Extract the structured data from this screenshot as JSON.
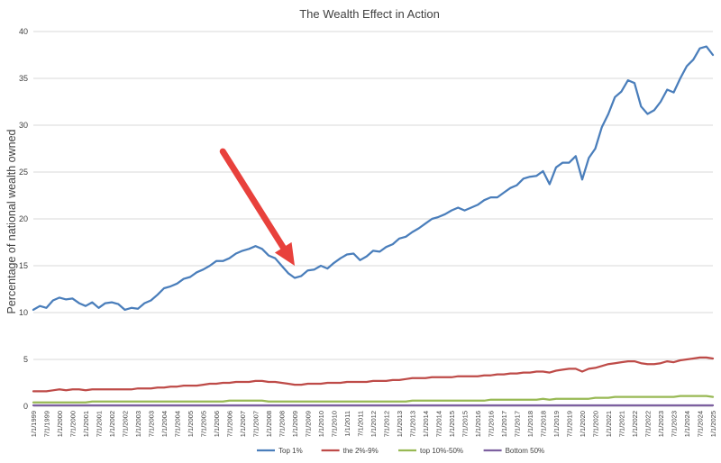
{
  "chart_data": {
    "type": "line",
    "title": "The Wealth Effect in Action",
    "xlabel": "",
    "ylabel": "Percentage of national wealth owned",
    "ylim": [
      0,
      40
    ],
    "yticks": [
      0,
      5,
      10,
      15,
      20,
      25,
      30,
      35,
      40
    ],
    "grid": "horizontal",
    "legend": "bottom",
    "x": [
      "1/1/1999",
      "4/1/1999",
      "7/1/1999",
      "10/1/1999",
      "1/1/2000",
      "4/1/2000",
      "7/1/2000",
      "10/1/2000",
      "1/1/2001",
      "4/1/2001",
      "7/1/2001",
      "10/1/2001",
      "1/1/2002",
      "4/1/2002",
      "7/1/2002",
      "10/1/2002",
      "1/1/2003",
      "4/1/2003",
      "7/1/2003",
      "10/1/2003",
      "1/1/2004",
      "4/1/2004",
      "7/1/2004",
      "10/1/2004",
      "1/1/2005",
      "4/1/2005",
      "7/1/2005",
      "10/1/2005",
      "1/1/2006",
      "4/1/2006",
      "7/1/2006",
      "10/1/2006",
      "1/1/2007",
      "4/1/2007",
      "7/1/2007",
      "10/1/2007",
      "1/1/2008",
      "4/1/2008",
      "7/1/2008",
      "10/1/2008",
      "1/1/2009",
      "4/1/2009",
      "7/1/2009",
      "10/1/2009",
      "1/1/2010",
      "4/1/2010",
      "7/1/2010",
      "10/1/2010",
      "1/1/2011",
      "4/1/2011",
      "7/1/2011",
      "10/1/2011",
      "1/1/2012",
      "4/1/2012",
      "7/1/2012",
      "10/1/2012",
      "1/1/2013",
      "4/1/2013",
      "7/1/2013",
      "10/1/2013",
      "1/1/2014",
      "4/1/2014",
      "7/1/2014",
      "10/1/2014",
      "1/1/2015",
      "4/1/2015",
      "7/1/2015",
      "10/1/2015",
      "1/1/2016",
      "4/1/2016",
      "7/1/2016",
      "10/1/2016",
      "1/1/2017",
      "4/1/2017",
      "7/1/2017",
      "10/1/2017",
      "1/1/2018",
      "4/1/2018",
      "7/1/2018",
      "10/1/2018",
      "1/1/2019",
      "4/1/2019",
      "7/1/2019",
      "10/1/2019",
      "1/1/2020",
      "4/1/2020",
      "7/1/2020",
      "10/1/2020",
      "1/1/2021",
      "4/1/2021",
      "7/1/2021",
      "10/1/2021",
      "1/1/2022",
      "4/1/2022",
      "7/1/2022",
      "10/1/2022",
      "1/1/2023",
      "4/1/2023",
      "7/1/2023",
      "10/1/2023",
      "1/1/2024",
      "4/1/2024",
      "7/1/2024",
      "10/1/2024",
      "1/1/2025"
    ],
    "xtick_labels": [
      "1/1/1999",
      "7/1/1999",
      "1/1/2000",
      "7/1/2000",
      "1/1/2001",
      "7/1/2001",
      "1/1/2002",
      "7/1/2002",
      "1/1/2003",
      "7/1/2003",
      "1/1/2004",
      "7/1/2004",
      "1/1/2005",
      "7/1/2005",
      "1/1/2006",
      "7/1/2006",
      "1/1/2007",
      "7/1/2007",
      "1/1/2008",
      "7/1/2008",
      "1/1/2009",
      "7/1/2009",
      "1/1/2010",
      "7/1/2010",
      "1/1/2011",
      "7/1/2011",
      "1/1/2012",
      "7/1/2012",
      "1/1/2013",
      "7/1/2013",
      "1/1/2014",
      "7/1/2014",
      "1/1/2015",
      "7/1/2015",
      "1/1/2016",
      "7/1/2016",
      "1/1/2017",
      "7/1/2017",
      "1/1/2018",
      "7/1/2018",
      "1/1/2019",
      "7/1/2019",
      "1/1/2020",
      "7/1/2020",
      "1/1/2021",
      "7/1/2021",
      "1/1/2022",
      "7/1/2022",
      "1/1/2023",
      "7/1/2023",
      "1/1/2024",
      "7/1/2024",
      "1/1/2025"
    ],
    "series": [
      {
        "name": "Top 1%",
        "color": "#4a7ebb",
        "values": [
          10.3,
          10.7,
          10.5,
          11.3,
          11.6,
          11.4,
          11.5,
          11.0,
          10.7,
          11.1,
          10.5,
          11.0,
          11.1,
          10.9,
          10.3,
          10.5,
          10.4,
          11.0,
          11.3,
          11.9,
          12.6,
          12.8,
          13.1,
          13.6,
          13.8,
          14.3,
          14.6,
          15.0,
          15.5,
          15.5,
          15.8,
          16.3,
          16.6,
          16.8,
          17.1,
          16.8,
          16.1,
          15.8,
          15.0,
          14.2,
          13.7,
          13.9,
          14.5,
          14.6,
          15.0,
          14.7,
          15.3,
          15.8,
          16.2,
          16.3,
          15.6,
          16.0,
          16.6,
          16.5,
          17.0,
          17.3,
          17.9,
          18.1,
          18.6,
          19.0,
          19.5,
          20.0,
          20.2,
          20.5,
          20.9,
          21.2,
          20.9,
          21.2,
          21.5,
          22.0,
          22.3,
          22.3,
          22.8,
          23.3,
          23.6,
          24.3,
          24.5,
          24.6,
          25.1,
          23.7,
          25.5,
          26.0,
          26.0,
          26.7,
          24.2,
          26.5,
          27.5,
          29.8,
          31.2,
          33.0,
          33.6,
          34.8,
          34.5,
          32.0,
          31.2,
          31.6,
          32.5,
          33.8,
          33.5,
          35.0,
          36.3,
          37.0,
          38.2,
          38.4,
          37.5
        ]
      },
      {
        "name": "the 2%-9%",
        "color": "#be4b48",
        "values": [
          1.6,
          1.6,
          1.6,
          1.7,
          1.8,
          1.7,
          1.8,
          1.8,
          1.7,
          1.8,
          1.8,
          1.8,
          1.8,
          1.8,
          1.8,
          1.8,
          1.9,
          1.9,
          1.9,
          2.0,
          2.0,
          2.1,
          2.1,
          2.2,
          2.2,
          2.2,
          2.3,
          2.4,
          2.4,
          2.5,
          2.5,
          2.6,
          2.6,
          2.6,
          2.7,
          2.7,
          2.6,
          2.6,
          2.5,
          2.4,
          2.3,
          2.3,
          2.4,
          2.4,
          2.4,
          2.5,
          2.5,
          2.5,
          2.6,
          2.6,
          2.6,
          2.6,
          2.7,
          2.7,
          2.7,
          2.8,
          2.8,
          2.9,
          3.0,
          3.0,
          3.0,
          3.1,
          3.1,
          3.1,
          3.1,
          3.2,
          3.2,
          3.2,
          3.2,
          3.3,
          3.3,
          3.4,
          3.4,
          3.5,
          3.5,
          3.6,
          3.6,
          3.7,
          3.7,
          3.6,
          3.8,
          3.9,
          4.0,
          4.0,
          3.7,
          4.0,
          4.1,
          4.3,
          4.5,
          4.6,
          4.7,
          4.8,
          4.8,
          4.6,
          4.5,
          4.5,
          4.6,
          4.8,
          4.7,
          4.9,
          5.0,
          5.1,
          5.2,
          5.2,
          5.1
        ]
      },
      {
        "name": "top 10%-50%",
        "color": "#98b954",
        "values": [
          0.4,
          0.4,
          0.4,
          0.4,
          0.4,
          0.4,
          0.4,
          0.4,
          0.4,
          0.5,
          0.5,
          0.5,
          0.5,
          0.5,
          0.5,
          0.5,
          0.5,
          0.5,
          0.5,
          0.5,
          0.5,
          0.5,
          0.5,
          0.5,
          0.5,
          0.5,
          0.5,
          0.5,
          0.5,
          0.5,
          0.6,
          0.6,
          0.6,
          0.6,
          0.6,
          0.6,
          0.5,
          0.5,
          0.5,
          0.5,
          0.5,
          0.5,
          0.5,
          0.5,
          0.5,
          0.5,
          0.5,
          0.5,
          0.5,
          0.5,
          0.5,
          0.5,
          0.5,
          0.5,
          0.5,
          0.5,
          0.5,
          0.5,
          0.6,
          0.6,
          0.6,
          0.6,
          0.6,
          0.6,
          0.6,
          0.6,
          0.6,
          0.6,
          0.6,
          0.6,
          0.7,
          0.7,
          0.7,
          0.7,
          0.7,
          0.7,
          0.7,
          0.7,
          0.8,
          0.7,
          0.8,
          0.8,
          0.8,
          0.8,
          0.8,
          0.8,
          0.9,
          0.9,
          0.9,
          1.0,
          1.0,
          1.0,
          1.0,
          1.0,
          1.0,
          1.0,
          1.0,
          1.0,
          1.0,
          1.1,
          1.1,
          1.1,
          1.1,
          1.1,
          1.0
        ]
      },
      {
        "name": "Bottom 50%",
        "color": "#7d60a0",
        "values": [
          0.1,
          0.1,
          0.1,
          0.1,
          0.1,
          0.1,
          0.1,
          0.1,
          0.1,
          0.1,
          0.1,
          0.1,
          0.1,
          0.1,
          0.1,
          0.1,
          0.1,
          0.1,
          0.1,
          0.1,
          0.1,
          0.1,
          0.1,
          0.1,
          0.1,
          0.1,
          0.1,
          0.1,
          0.1,
          0.1,
          0.1,
          0.1,
          0.1,
          0.1,
          0.1,
          0.1,
          0.1,
          0.1,
          0.1,
          0.1,
          0.1,
          0.1,
          0.1,
          0.1,
          0.1,
          0.1,
          0.1,
          0.1,
          0.1,
          0.1,
          0.1,
          0.1,
          0.1,
          0.1,
          0.1,
          0.1,
          0.1,
          0.1,
          0.1,
          0.1,
          0.1,
          0.1,
          0.1,
          0.1,
          0.1,
          0.1,
          0.1,
          0.1,
          0.1,
          0.1,
          0.1,
          0.1,
          0.1,
          0.1,
          0.1,
          0.1,
          0.1,
          0.1,
          0.1,
          0.1,
          0.1,
          0.1,
          0.1,
          0.1,
          0.1,
          0.1,
          0.1,
          0.1,
          0.1,
          0.1,
          0.1,
          0.1,
          0.1,
          0.1,
          0.1,
          0.1,
          0.1,
          0.1,
          0.1,
          0.1,
          0.1,
          0.1,
          0.1,
          0.1,
          0.1
        ]
      }
    ],
    "annotations": [
      {
        "type": "arrow",
        "color": "#e8413c",
        "from": {
          "x": "4/1/2006",
          "y": 27.2
        },
        "to": {
          "x": "1/1/2009",
          "y": 15.0
        }
      }
    ]
  }
}
